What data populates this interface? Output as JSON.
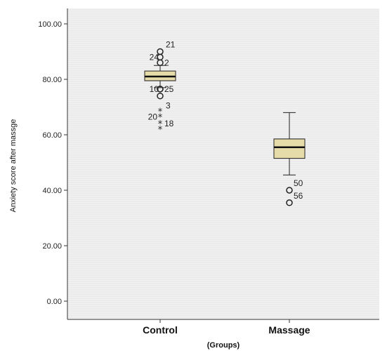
{
  "chart_data": {
    "type": "boxplot",
    "xlabel": "(Groups)",
    "ylabel": "Anxiety score after massge",
    "ylim": [
      0,
      100
    ],
    "yticks": [
      "0.00",
      "20.00",
      "40.00",
      "60.00",
      "80.00",
      "100.00"
    ],
    "categories": [
      "Control",
      "Massage"
    ],
    "box_color": "#e6dcaa",
    "background_color": "#f2f2f2",
    "grid": true,
    "groups": [
      {
        "name": "Control",
        "whisker_low": 77,
        "q1": 79.5,
        "median": 81,
        "q3": 83,
        "whisker_high": 85,
        "outliers": [
          {
            "value": 90,
            "marker": "circle",
            "label": "21"
          },
          {
            "value": 88,
            "marker": "circle",
            "label": "24"
          },
          {
            "value": 86,
            "marker": "circle",
            "label": "2"
          },
          {
            "value": 76.5,
            "marker": "circle",
            "label": "10"
          },
          {
            "value": 76.5,
            "marker": "circle",
            "label": "25"
          },
          {
            "value": 74,
            "marker": "circle",
            "label": ""
          },
          {
            "value": 68.5,
            "marker": "star",
            "label": "3"
          },
          {
            "value": 66.5,
            "marker": "star",
            "label": "20"
          },
          {
            "value": 64,
            "marker": "star",
            "label": "18"
          },
          {
            "value": 62,
            "marker": "star",
            "label": ""
          }
        ]
      },
      {
        "name": "Massage",
        "whisker_low": 45.5,
        "q1": 51.5,
        "median": 55.5,
        "q3": 58.5,
        "whisker_high": 68,
        "outliers": [
          {
            "value": 40,
            "marker": "circle",
            "label": "50"
          },
          {
            "value": 35.5,
            "marker": "circle",
            "label": "56"
          }
        ]
      }
    ]
  }
}
